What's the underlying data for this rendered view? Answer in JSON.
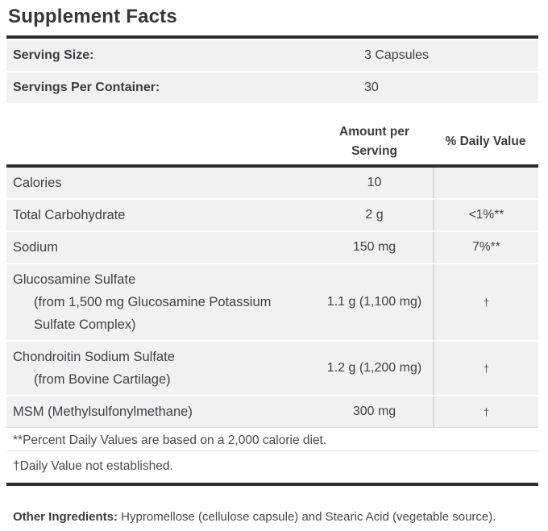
{
  "title": "Supplement Facts",
  "serving_info": [
    {
      "label": "Serving Size:",
      "value": "3 Capsules"
    },
    {
      "label": "Servings Per Container:",
      "value": "30"
    }
  ],
  "columns": {
    "amount": "Amount per Serving",
    "daily_value": "% Daily Value"
  },
  "rows": [
    {
      "name": "Calories",
      "amount": "10",
      "dv": ""
    },
    {
      "name": "Total Carbohydrate",
      "amount": "2 g",
      "dv": "<1%**"
    },
    {
      "name": "Sodium",
      "amount": "150 mg",
      "dv": "7%**"
    },
    {
      "name": "Glucosamine Sulfate",
      "sub": [
        "(from 1,500 mg Glucosamine Potassium",
        "Sulfate Complex)"
      ],
      "amount": "1.1 g (1,100 mg)",
      "dv": "†"
    },
    {
      "name": "Chondroitin Sodium Sulfate",
      "sub": [
        "(from Bovine Cartilage)"
      ],
      "amount": "1.2 g (1,200 mg)",
      "dv": "†"
    },
    {
      "name": "MSM (Methylsulfonylmethane)",
      "amount": "300 mg",
      "dv": "†"
    }
  ],
  "footnotes": [
    "**Percent Daily Values are based on a 2,000 calorie diet.",
    "†Daily Value not established."
  ],
  "other_ingredients": {
    "label": "Other Ingredients:",
    "text": " Hypromellose (cellulose capsule) and Stearic Acid (vegetable source)."
  },
  "colors": {
    "row_background": "#f1f1f2",
    "bar": "#2d2d2e",
    "text": "#414145",
    "divider": "#d9d9dc"
  }
}
